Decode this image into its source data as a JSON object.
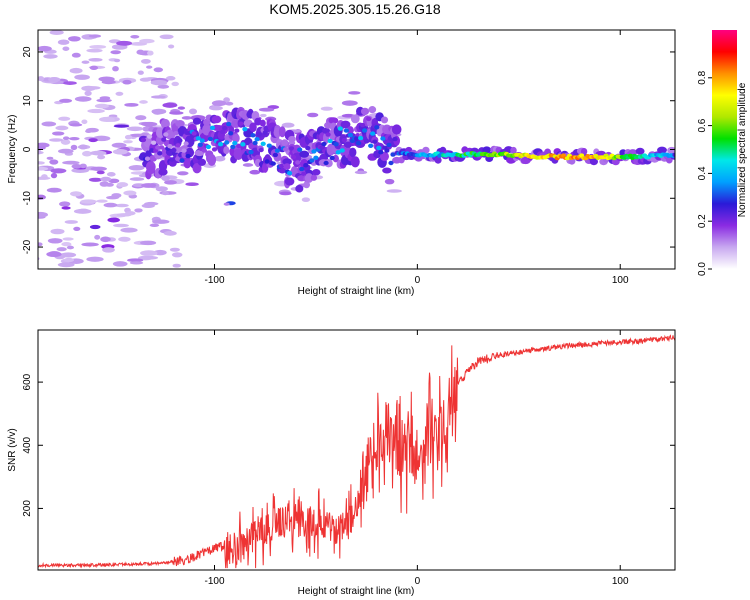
{
  "figure": {
    "title": "KOM5.2025.305.15.26.G18"
  },
  "chart_data": [
    {
      "type": "heatmap",
      "title": "KOM5.2025.305.15.26.G18",
      "xlabel": "Height of straight line (km)",
      "ylabel": "Frequency (Hz)",
      "xlim": [
        -187,
        127
      ],
      "ylim": [
        -24.5,
        24.5
      ],
      "xticks": [
        -100,
        0,
        100
      ],
      "xtick_labels": [
        "-100",
        "0",
        "100"
      ],
      "yticks": [
        -20,
        -10,
        0,
        10,
        20
      ],
      "ytick_labels": [
        "-20",
        "-10",
        "0",
        "10",
        "20"
      ],
      "colorbar": {
        "label": "Normalized spectral amplitude",
        "range": [
          0,
          1
        ],
        "ticks": [
          0.0,
          0.2,
          0.4,
          0.6,
          0.8
        ],
        "tick_labels": [
          "0.0",
          "0.2",
          "0.4",
          "0.6",
          "0.8"
        ],
        "colormap": [
          "#ffffff",
          "#c8a8f0",
          "#8a2be2",
          "#2a1ad8",
          "#00a0ff",
          "#00e8e8",
          "#00e000",
          "#b0e800",
          "#ffff00",
          "#ff9000",
          "#ff0000",
          "#ff0080"
        ]
      },
      "ridge": {
        "description_points": [
          {
            "x": -130,
            "f": 0,
            "amp": 0.15
          },
          {
            "x": -110,
            "f": 1,
            "amp": 0.25
          },
          {
            "x": -95,
            "f": 3,
            "amp": 0.3
          },
          {
            "x": -80,
            "f": 2,
            "amp": 0.3
          },
          {
            "x": -60,
            "f": -3,
            "amp": 0.25
          },
          {
            "x": -45,
            "f": 0,
            "amp": 0.3
          },
          {
            "x": -25,
            "f": 4,
            "amp": 0.3
          },
          {
            "x": -10,
            "f": -1,
            "amp": 0.3
          },
          {
            "x": 10,
            "f": -1,
            "amp": 0.4
          },
          {
            "x": 40,
            "f": -1,
            "amp": 0.6
          },
          {
            "x": 60,
            "f": -1.5,
            "amp": 0.75
          },
          {
            "x": 85,
            "f": -1.5,
            "amp": 0.8
          },
          {
            "x": 110,
            "f": -1.5,
            "amp": 0.5
          },
          {
            "x": 127,
            "f": -1,
            "amp": 0.3
          }
        ]
      }
    },
    {
      "type": "line",
      "xlabel": "Height of straight line (km)",
      "ylabel": "SNR (v/v)",
      "xlim": [
        -187,
        127
      ],
      "ylim": [
        5,
        765
      ],
      "xticks": [
        -100,
        0,
        100
      ],
      "xtick_labels": [
        "-100",
        "0",
        "100"
      ],
      "yticks": [
        200,
        400,
        600
      ],
      "ytick_labels": [
        "200",
        "400",
        "600"
      ],
      "series": [
        {
          "name": "SNR",
          "color": "#ee3333",
          "x": [
            -187,
            -170,
            -150,
            -130,
            -115,
            -105,
            -100,
            -95,
            -90,
            -80,
            -70,
            -60,
            -50,
            -40,
            -35,
            -30,
            -25,
            -20,
            -15,
            -10,
            -5,
            0,
            5,
            10,
            15,
            20,
            25,
            30,
            40,
            50,
            60,
            70,
            80,
            90,
            100,
            110,
            120,
            127
          ],
          "y": [
            20,
            20,
            22,
            25,
            35,
            60,
            75,
            80,
            70,
            110,
            150,
            160,
            150,
            130,
            140,
            200,
            320,
            420,
            450,
            400,
            380,
            370,
            430,
            440,
            520,
            590,
            640,
            665,
            685,
            695,
            705,
            712,
            718,
            722,
            727,
            730,
            735,
            742
          ]
        }
      ]
    }
  ]
}
